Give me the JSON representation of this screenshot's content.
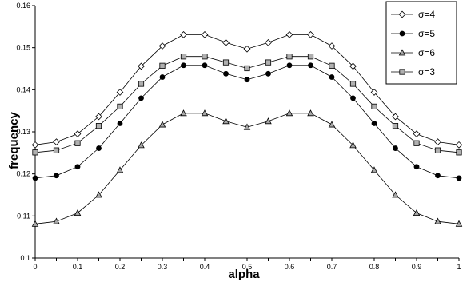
{
  "chart_data": {
    "type": "line",
    "title": "",
    "xlabel": "alpha",
    "ylabel": "frequency",
    "xlim": [
      0,
      1
    ],
    "ylim": [
      0.1,
      0.16
    ],
    "x": [
      0,
      0.05,
      0.1,
      0.15,
      0.2,
      0.25,
      0.3,
      0.35,
      0.4,
      0.45,
      0.5,
      0.55,
      0.6,
      0.65,
      0.7,
      0.75,
      0.8,
      0.85,
      0.9,
      0.95,
      1
    ],
    "x_tick_labels": [
      "0",
      "0.1",
      "0.2",
      "0.3",
      "0.4",
      "0.5",
      "0.6",
      "0.7",
      "0.8",
      "0.9",
      "1"
    ],
    "y_tick_labels": [
      "0.1",
      "0.11",
      "0.12",
      "0.13",
      "0.14",
      "0.15",
      "0.16"
    ],
    "grid": false,
    "legend_position": "top-right",
    "series": [
      {
        "name": "σ=4",
        "marker": "diamond",
        "fill": "#ffffff",
        "values": [
          0.1269,
          0.1276,
          0.1295,
          0.1336,
          0.1394,
          0.1456,
          0.1504,
          0.1531,
          0.1531,
          0.1512,
          0.1497,
          0.1512,
          0.1531,
          0.1531,
          0.1504,
          0.1456,
          0.1394,
          0.1336,
          0.1295,
          0.1276,
          0.1269
        ]
      },
      {
        "name": "σ=5",
        "marker": "circle",
        "fill": "#000000",
        "values": [
          0.119,
          0.1196,
          0.1217,
          0.1261,
          0.132,
          0.138,
          0.143,
          0.1458,
          0.1458,
          0.1438,
          0.1424,
          0.1438,
          0.1458,
          0.1458,
          0.143,
          0.138,
          0.132,
          0.1261,
          0.1217,
          0.1196,
          0.119
        ]
      },
      {
        "name": "σ=6",
        "marker": "triangle",
        "fill": "#a6a6a6",
        "values": [
          0.1081,
          0.1087,
          0.1107,
          0.115,
          0.1209,
          0.1268,
          0.1317,
          0.1344,
          0.1344,
          0.1325,
          0.1311,
          0.1325,
          0.1344,
          0.1344,
          0.1317,
          0.1268,
          0.1209,
          0.115,
          0.1107,
          0.1087,
          0.1081
        ]
      },
      {
        "name": "σ=3",
        "marker": "square",
        "fill": "#b0b0b0",
        "values": [
          0.1251,
          0.1256,
          0.1273,
          0.1314,
          0.136,
          0.1414,
          0.1457,
          0.1479,
          0.1479,
          0.1465,
          0.1451,
          0.1465,
          0.1479,
          0.1479,
          0.1457,
          0.1414,
          0.136,
          0.1314,
          0.1273,
          0.1256,
          0.1251
        ]
      }
    ]
  }
}
